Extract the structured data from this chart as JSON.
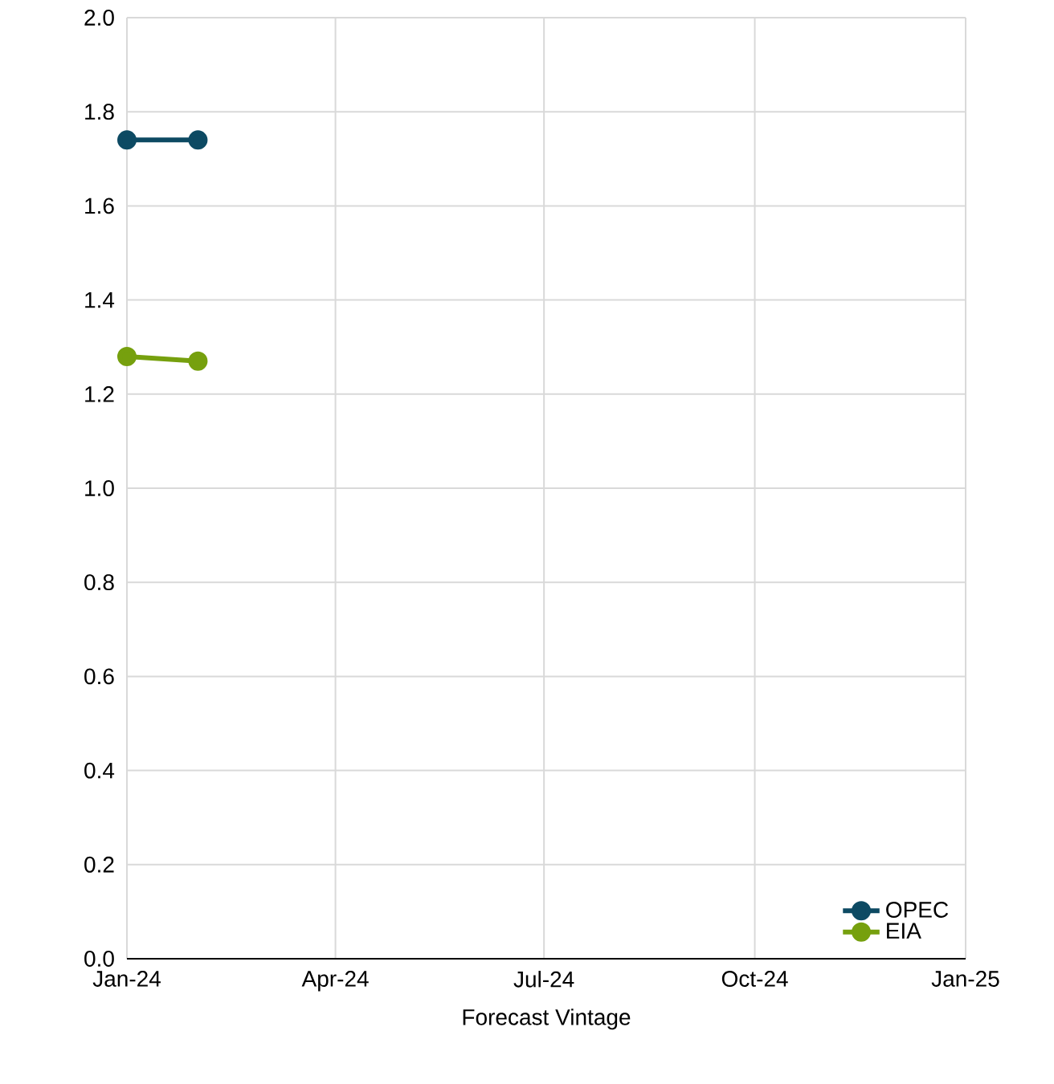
{
  "chart_data": {
    "type": "line",
    "xlabel": "Forecast Vintage",
    "xlim": [
      "2024-01",
      "2025-01"
    ],
    "xticks": [
      {
        "value": "2024-01",
        "label": "Jan-24"
      },
      {
        "value": "2024-04",
        "label": "Apr-24"
      },
      {
        "value": "2024-07",
        "label": "Jul-24"
      },
      {
        "value": "2024-10",
        "label": "Oct-24"
      },
      {
        "value": "2025-01",
        "label": "Jan-25"
      }
    ],
    "ylim": [
      0,
      2.0
    ],
    "yticks": [
      {
        "value": 0,
        "label": "0.0"
      },
      {
        "value": 0.2,
        "label": "0.2"
      },
      {
        "value": 0.4,
        "label": "0.4"
      },
      {
        "value": 0.6,
        "label": "0.6"
      },
      {
        "value": 0.8,
        "label": "0.8"
      },
      {
        "value": 1.0,
        "label": "1.0"
      },
      {
        "value": 1.2,
        "label": "1.2"
      },
      {
        "value": 1.4,
        "label": "1.4"
      },
      {
        "value": 1.6,
        "label": "1.6"
      },
      {
        "value": 1.8,
        "label": "1.8"
      },
      {
        "value": 2.0,
        "label": "2.0"
      }
    ],
    "grid": true,
    "legend": "bottom right",
    "marker": "circle",
    "line_style": "solid",
    "x": [
      "2024-01",
      "2024-02"
    ],
    "series": [
      {
        "name": "OPEC",
        "color": "#0d4a63",
        "values": [
          1.74,
          1.74
        ]
      },
      {
        "name": "EIA",
        "color": "#76a00e",
        "values": [
          1.28,
          1.27
        ]
      }
    ]
  }
}
